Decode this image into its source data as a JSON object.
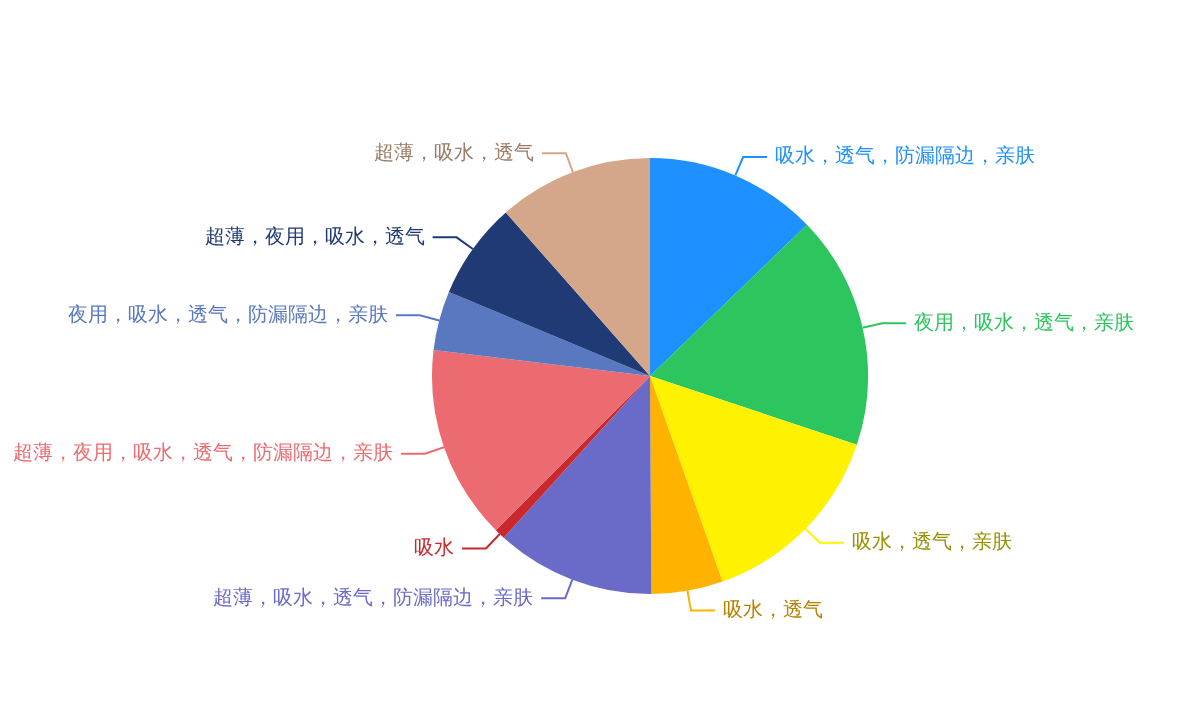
{
  "chart_data": {
    "type": "pie",
    "categories": [
      "吸水，透气，防漏隔边，亲肤",
      "夜用，吸水，透气，亲肤",
      "吸水，透气，亲肤",
      "吸水，透气",
      "超薄，吸水，透气，防漏隔边，亲肤",
      "吸水",
      "超薄，夜用，吸水，透气，防漏隔边，亲肤",
      "夜用，吸水，透气，防漏隔边，亲肤",
      "超薄，夜用，吸水，透气",
      "超薄，吸水，透气"
    ],
    "values": [
      12.8,
      17.3,
      14.5,
      5.3,
      11.8,
      0.8,
      14.4,
      4.4,
      7.2,
      11.5
    ],
    "colors": [
      "#1e90ff",
      "#2dc55e",
      "#fff200",
      "#ffb300",
      "#6a6ac8",
      "#c9282d",
      "#ec6b70",
      "#5a78c0",
      "#1f3a75",
      "#d4a78a"
    ]
  }
}
